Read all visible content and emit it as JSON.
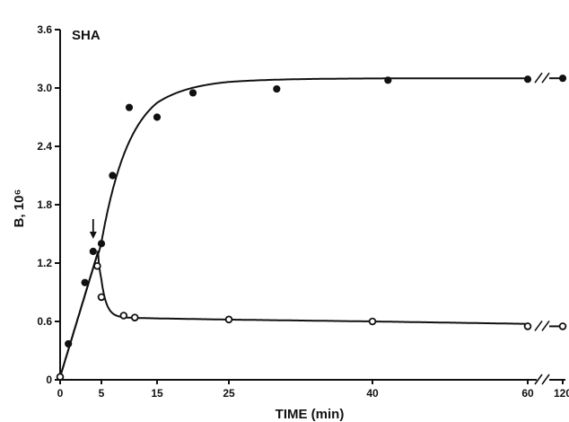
{
  "chart_data": {
    "type": "scatter",
    "title": "SHA",
    "xlabel": "TIME (min)",
    "ylabel": "B, 10⁶",
    "ylim": [
      0,
      3.6
    ],
    "yticks": [
      "0",
      "0.6",
      "1.2",
      "1.8",
      "2.4",
      "3.0",
      "3.6"
    ],
    "xticks": [
      "0",
      "5",
      "15",
      "25",
      "40",
      "60",
      "120"
    ],
    "x_axis_break": "between 60 and 120",
    "annotation": "arrow at t = 4 min",
    "series": [
      {
        "marker": "filled-circle",
        "points": [
          {
            "x": 0,
            "y": 0.03
          },
          {
            "x": 1,
            "y": 0.37
          },
          {
            "x": 3,
            "y": 1.0
          },
          {
            "x": 4,
            "y": 1.32
          },
          {
            "x": 5,
            "y": 1.4
          },
          {
            "x": 7,
            "y": 2.1
          },
          {
            "x": 10,
            "y": 2.8
          },
          {
            "x": 15,
            "y": 2.7
          },
          {
            "x": 20,
            "y": 2.95
          },
          {
            "x": 30,
            "y": 2.99
          },
          {
            "x": 42,
            "y": 3.08
          },
          {
            "x": 60,
            "y": 3.09
          },
          {
            "x": 120,
            "y": 3.1
          }
        ]
      },
      {
        "marker": "open-circle",
        "points": [
          {
            "x": 0,
            "y": 0.03
          },
          {
            "x": 4.5,
            "y": 1.17
          },
          {
            "x": 5,
            "y": 0.85
          },
          {
            "x": 9,
            "y": 0.66
          },
          {
            "x": 11,
            "y": 0.64
          },
          {
            "x": 25,
            "y": 0.62
          },
          {
            "x": 40,
            "y": 0.6
          },
          {
            "x": 60,
            "y": 0.55
          },
          {
            "x": 120,
            "y": 0.55
          }
        ]
      }
    ]
  }
}
